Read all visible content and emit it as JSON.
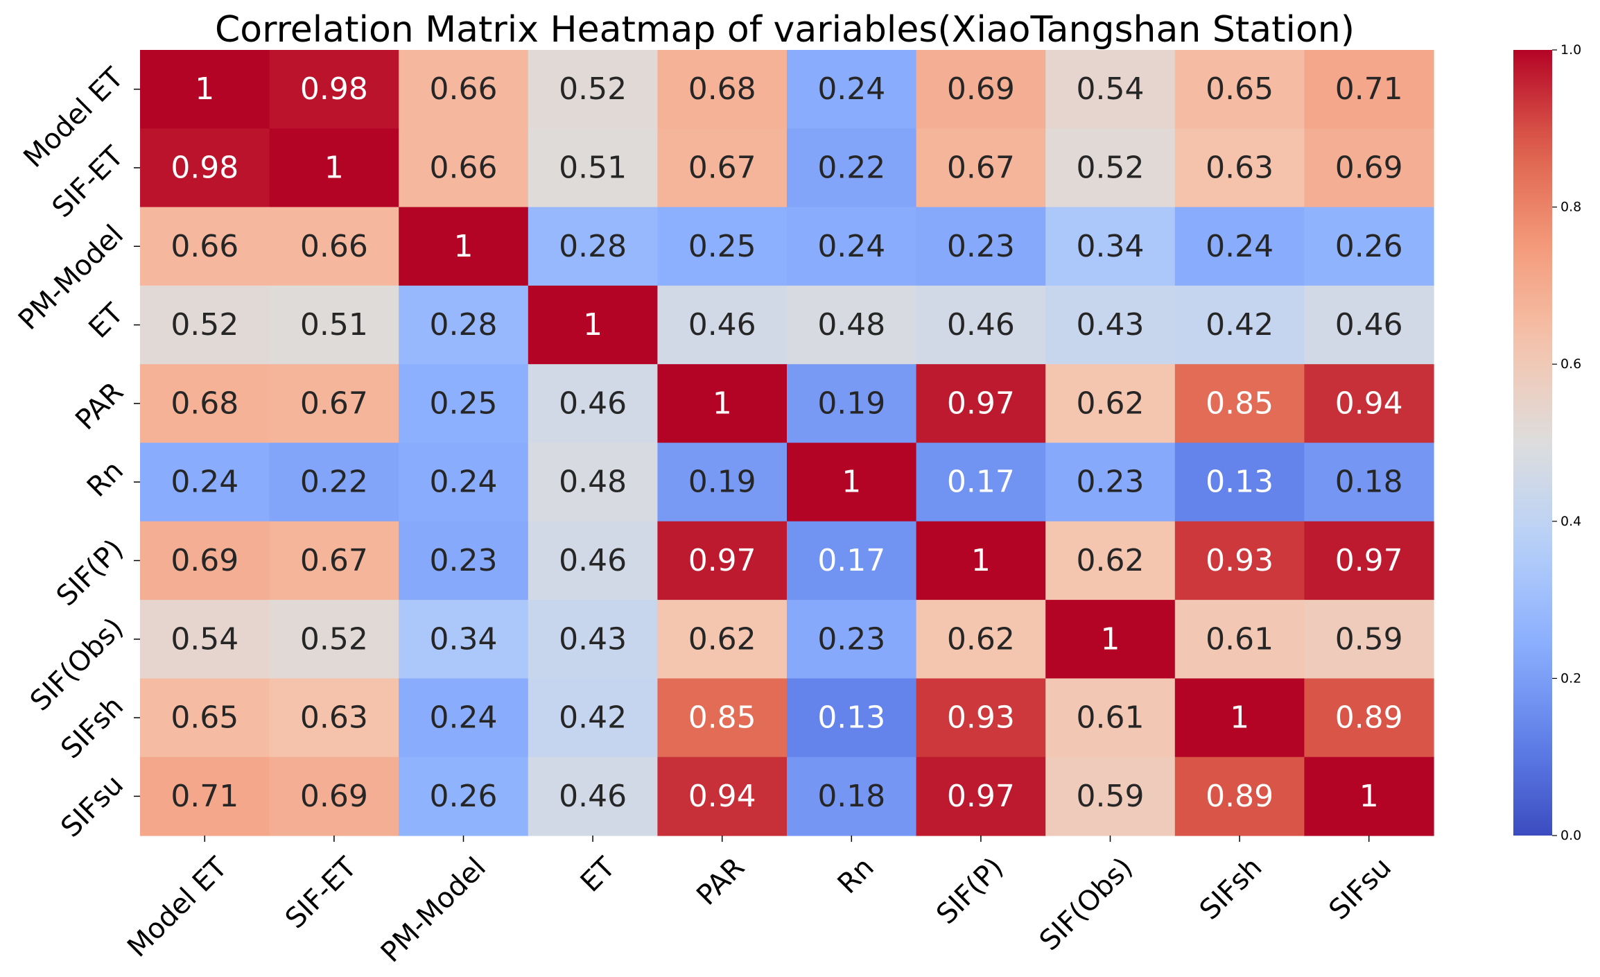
{
  "chart_data": {
    "type": "heatmap",
    "title": "Correlation Matrix Heatmap of variables(XiaoTangshan Station)",
    "xlabel": "",
    "ylabel": "",
    "colormap": "coolwarm",
    "vmin": 0.0,
    "vmax": 1.0,
    "x_categories": [
      "Model ET",
      "SIF-ET",
      "PM-Model",
      "ET",
      "PAR",
      "Rn",
      "SIF(P)",
      "SIF(Obs)",
      "SIFsh",
      "SIFsu"
    ],
    "y_categories": [
      "Model ET",
      "SIF-ET",
      "PM-Model",
      "ET",
      "PAR",
      "Rn",
      "SIF(P)",
      "SIF(Obs)",
      "SIFsh",
      "SIFsu"
    ],
    "values": [
      [
        1,
        0.98,
        0.66,
        0.52,
        0.68,
        0.24,
        0.69,
        0.54,
        0.65,
        0.71
      ],
      [
        0.98,
        1,
        0.66,
        0.51,
        0.67,
        0.22,
        0.67,
        0.52,
        0.63,
        0.69
      ],
      [
        0.66,
        0.66,
        1,
        0.28,
        0.25,
        0.24,
        0.23,
        0.34,
        0.24,
        0.26
      ],
      [
        0.52,
        0.51,
        0.28,
        1,
        0.46,
        0.48,
        0.46,
        0.43,
        0.42,
        0.46
      ],
      [
        0.68,
        0.67,
        0.25,
        0.46,
        1,
        0.19,
        0.97,
        0.62,
        0.85,
        0.94
      ],
      [
        0.24,
        0.22,
        0.24,
        0.48,
        0.19,
        1,
        0.17,
        0.23,
        0.13,
        0.18
      ],
      [
        0.69,
        0.67,
        0.23,
        0.46,
        0.97,
        0.17,
        1,
        0.62,
        0.93,
        0.97
      ],
      [
        0.54,
        0.52,
        0.34,
        0.43,
        0.62,
        0.23,
        0.62,
        1,
        0.61,
        0.59
      ],
      [
        0.65,
        0.63,
        0.24,
        0.42,
        0.85,
        0.13,
        0.93,
        0.61,
        1,
        0.89
      ],
      [
        0.71,
        0.69,
        0.26,
        0.46,
        0.94,
        0.18,
        0.97,
        0.59,
        0.89,
        1
      ]
    ],
    "colorbar": {
      "ticks": [
        0.0,
        0.2,
        0.4,
        0.6,
        0.8,
        1.0
      ],
      "tick_labels": [
        "0.0",
        "0.2",
        "0.4",
        "0.6",
        "0.8",
        "1.0"
      ]
    },
    "annotation_colors": {
      "dark": "#262626",
      "light": "#ffffff"
    }
  }
}
